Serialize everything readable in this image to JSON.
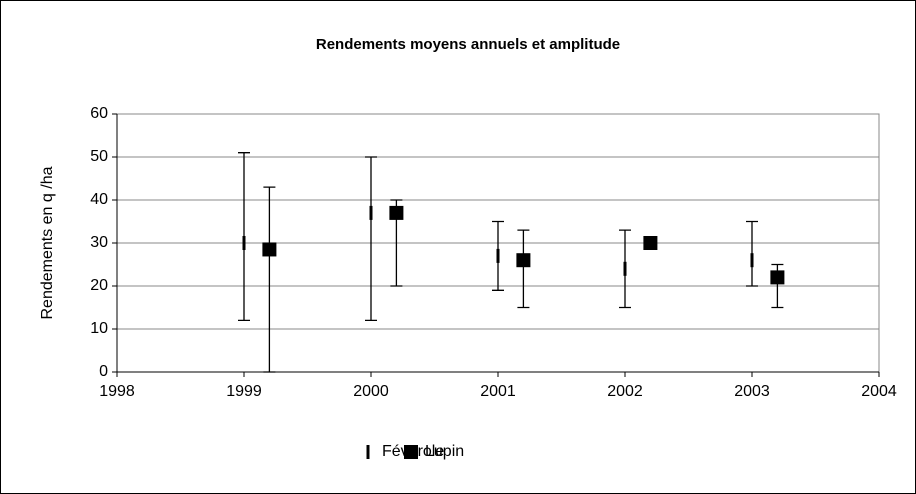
{
  "chart_data": {
    "type": "errorbar",
    "title": "Rendements moyens annuels et amplitude",
    "ylabel": "Rendements en q /ha",
    "xlim": [
      1998,
      2004
    ],
    "xticks": [
      1998,
      1999,
      2000,
      2001,
      2002,
      2003,
      2004
    ],
    "ylim": [
      0,
      60
    ],
    "yticks": [
      0,
      10,
      20,
      30,
      40,
      50,
      60
    ],
    "grid": true,
    "legend": "bottom",
    "series": [
      {
        "name": "Féverole",
        "color": "#000000",
        "marker": "dash",
        "x": [
          1999,
          2000,
          2001,
          2002,
          2003
        ],
        "values": [
          30,
          37,
          27,
          24,
          26
        ],
        "low": [
          12,
          12,
          19,
          15,
          20
        ],
        "high": [
          51,
          50,
          35,
          33,
          35
        ]
      },
      {
        "name": "Lupin",
        "color": "#000000",
        "marker": "square",
        "x": [
          1999.2,
          2000.2,
          2001.2,
          2002.2,
          2003.2
        ],
        "values": [
          28.5,
          37,
          26,
          30,
          22
        ],
        "low": [
          0,
          20,
          15,
          30,
          15
        ],
        "high": [
          43,
          40,
          33,
          30,
          25
        ]
      }
    ]
  }
}
